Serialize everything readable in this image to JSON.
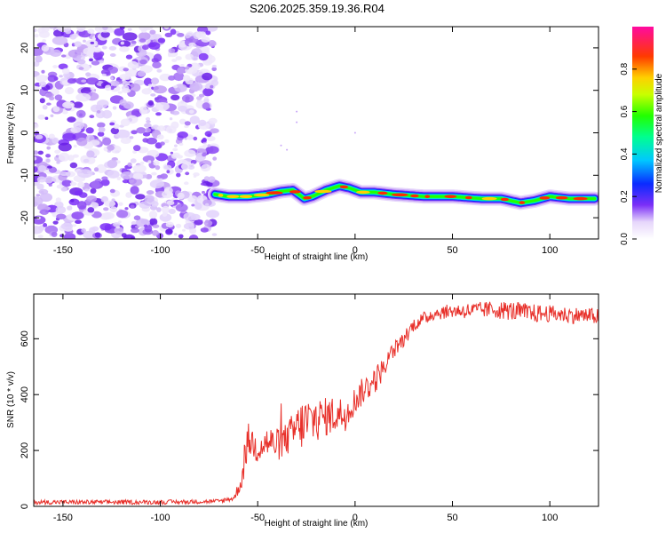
{
  "title": "S206.2025.359.19.36.R04",
  "colors": {
    "noise": "#7b2ff7",
    "snr_line": "#e8302a",
    "frame": "#000000"
  },
  "chart_data": [
    {
      "type": "heatmap",
      "xlabel": "Height of straight line (km)",
      "ylabel": "Frequency (Hz)",
      "xlim": [
        -165,
        125
      ],
      "ylim": [
        -25,
        25
      ],
      "xticks": [
        -150,
        -100,
        -50,
        0,
        50,
        100
      ],
      "yticks": [
        -20,
        -10,
        0,
        10,
        20
      ],
      "noise_region_x": [
        -165,
        -72
      ],
      "trace": {
        "x": [
          -72,
          -65,
          -55,
          -45,
          -38,
          -32,
          -26,
          -22,
          -15,
          -8,
          -3,
          3,
          10,
          20,
          35,
          50,
          65,
          75,
          85,
          92,
          100,
          110,
          123
        ],
        "freq": [
          -14.5,
          -15,
          -15,
          -14.5,
          -13.8,
          -13.5,
          -15.5,
          -15,
          -13.5,
          -12.5,
          -13,
          -14,
          -14,
          -14.5,
          -15,
          -15,
          -15.5,
          -15.5,
          -16.5,
          -16,
          -15,
          -15.5,
          -15.5
        ]
      },
      "colorbar": {
        "label": "Normalized spectral amplitude",
        "ticks": [
          "0.0",
          "0.2",
          "0.4",
          "0.6",
          "0.8"
        ],
        "tick_values": [
          0.0,
          0.2,
          0.4,
          0.6,
          0.8
        ],
        "range": [
          0,
          1
        ]
      }
    },
    {
      "type": "line",
      "xlabel": "Height of straight line (km)",
      "ylabel": "SNR (10 * v/v)",
      "xlim": [
        -165,
        125
      ],
      "ylim": [
        0,
        760
      ],
      "xticks": [
        -150,
        -100,
        -50,
        0,
        50,
        100
      ],
      "yticks": [
        0,
        200,
        400,
        600
      ],
      "series": [
        {
          "name": "SNR",
          "x": [
            -165,
            -100,
            -70,
            -62,
            -58,
            -55,
            -50,
            -45,
            -40,
            -35,
            -30,
            -25,
            -20,
            -15,
            -10,
            -5,
            0,
            5,
            10,
            15,
            20,
            25,
            30,
            40,
            50,
            60,
            70,
            80,
            90,
            100,
            110,
            125
          ],
          "y": [
            15,
            15,
            18,
            30,
            100,
            240,
            210,
            230,
            220,
            240,
            280,
            300,
            310,
            320,
            330,
            330,
            380,
            420,
            450,
            500,
            560,
            600,
            650,
            690,
            700,
            700,
            705,
            700,
            690,
            690,
            685,
            680
          ],
          "amp": [
            8,
            8,
            8,
            10,
            40,
            60,
            60,
            60,
            60,
            60,
            80,
            100,
            80,
            70,
            70,
            60,
            50,
            50,
            50,
            40,
            30,
            30,
            25,
            25,
            25,
            30,
            30,
            35,
            35,
            30,
            30,
            30
          ]
        }
      ]
    }
  ]
}
